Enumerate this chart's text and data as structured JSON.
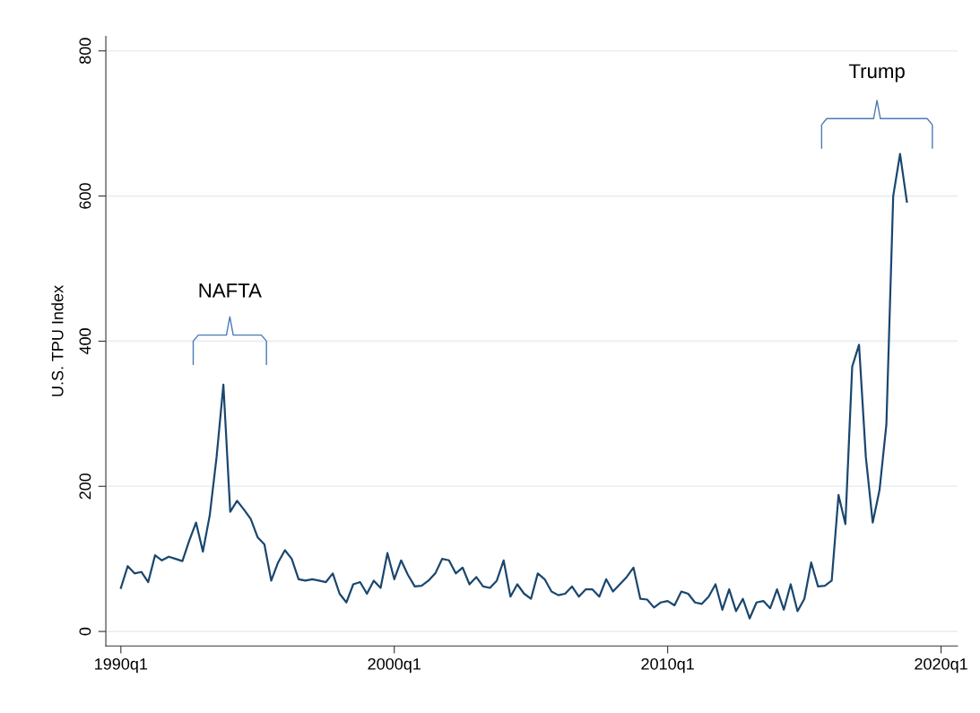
{
  "chart_data": {
    "type": "line",
    "ylabel": "U.S. TPU Index",
    "categories": [
      "1990q1",
      null,
      null,
      null,
      null,
      null,
      null,
      null,
      null,
      null,
      null,
      null,
      null,
      null,
      null,
      null,
      null,
      null,
      null,
      null,
      null,
      null,
      null,
      null,
      null,
      null,
      null,
      null,
      null,
      null,
      null,
      null,
      null,
      null,
      null,
      null,
      null,
      null,
      null,
      null,
      "2000q1",
      null,
      null,
      null,
      null,
      null,
      null,
      null,
      null,
      null,
      null,
      null,
      null,
      null,
      null,
      null,
      null,
      null,
      null,
      null,
      null,
      null,
      null,
      null,
      null,
      null,
      null,
      null,
      null,
      null,
      null,
      null,
      null,
      null,
      null,
      null,
      null,
      null,
      null,
      null,
      "2010q1",
      null,
      null,
      null,
      null,
      null,
      null,
      null,
      null,
      null,
      null,
      null,
      null,
      null,
      null,
      null,
      null,
      null,
      null,
      null,
      null,
      null,
      null,
      null,
      null,
      null,
      null,
      null,
      null,
      null,
      null,
      null,
      null,
      null,
      null,
      null,
      null,
      null,
      null,
      null,
      "2020q1"
    ],
    "series": [
      {
        "color": "#1a476f",
        "values": [
          60,
          90,
          80,
          82,
          68,
          105,
          98,
          103,
          100,
          97,
          125,
          150,
          110,
          160,
          240,
          340,
          165,
          180,
          168,
          155,
          130,
          120,
          70,
          95,
          112,
          100,
          72,
          70,
          72,
          70,
          68,
          80,
          52,
          40,
          65,
          68,
          52,
          70,
          60,
          108,
          72,
          98,
          78,
          62,
          63,
          70,
          80,
          100,
          98,
          80,
          88,
          65,
          75,
          62,
          60,
          70,
          98,
          48,
          65,
          52,
          45,
          80,
          72,
          55,
          50,
          52,
          62,
          48,
          58,
          58,
          48,
          72,
          55,
          65,
          75,
          88,
          45,
          44,
          33,
          40,
          42,
          36,
          55,
          52,
          40,
          38,
          48,
          65,
          30,
          58,
          28,
          45,
          18,
          40,
          42,
          32,
          58,
          30,
          65,
          28,
          45,
          95,
          62,
          63,
          70,
          188,
          148,
          365,
          395,
          240,
          150,
          195,
          285,
          600,
          658,
          592,
          null,
          null,
          null,
          null,
          null
        ]
      }
    ],
    "ylim": [
      -20,
      820
    ],
    "yticks": [
      0,
      200,
      400,
      600,
      800
    ],
    "grid": "y",
    "line_style": "solid",
    "marker": "none",
    "annotations": [
      "NAFTA",
      "Trump"
    ]
  }
}
